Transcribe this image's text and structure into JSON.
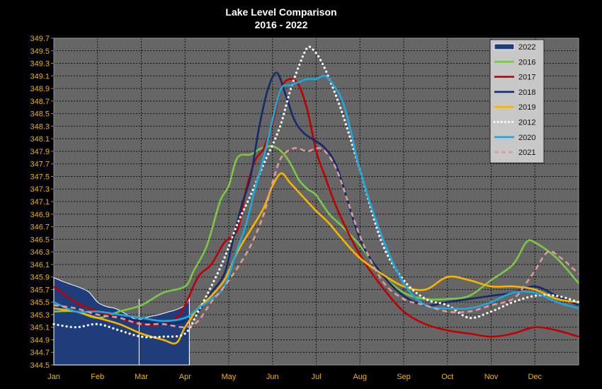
{
  "chart_data": {
    "type": "line",
    "title": "Lake Level Comparison",
    "subtitle": "2016 - 2022",
    "xlabel": "",
    "ylabel": "",
    "x_ticks": [
      "Jan",
      "Feb",
      "Mar",
      "Apr",
      "May",
      "Jun",
      "Jul",
      "Aug",
      "Sep",
      "Oct",
      "Nov",
      "Dec"
    ],
    "y_ticks": [
      "344.5",
      "344.7",
      "344.9",
      "345.1",
      "345.3",
      "345.5",
      "345.7",
      "345.9",
      "346.1",
      "346.3",
      "346.5",
      "346.7",
      "346.9",
      "347.1",
      "347.3",
      "347.5",
      "347.7",
      "347.9",
      "348.1",
      "348.3",
      "348.5",
      "348.7",
      "348.9",
      "349.1",
      "349.3",
      "349.5",
      "349.7"
    ],
    "ylim": [
      344.5,
      349.7
    ],
    "xlim": [
      0,
      12
    ],
    "grid": true,
    "legend_position": "top-right",
    "colors": {
      "background": "#000000",
      "plot_area": "#666666",
      "grid": "#111111",
      "tick_text": "#f0b400",
      "title_text": "#ffffff",
      "legend_bg": "#c8c8c8"
    },
    "series": [
      {
        "name": "2022",
        "style": "area",
        "color": "#1f3d7a",
        "x": [
          0,
          0.2,
          0.4,
          0.6,
          0.8,
          1.0,
          1.2,
          1.4,
          1.6,
          1.8,
          1.95,
          2.0,
          2.2,
          2.4,
          2.6,
          2.8,
          3.0,
          3.1
        ],
        "y": [
          345.89,
          345.83,
          345.78,
          345.73,
          345.66,
          345.5,
          345.43,
          345.4,
          345.33,
          345.25,
          345.2,
          345.23,
          345.27,
          345.3,
          345.34,
          345.38,
          345.45,
          345.55
        ]
      },
      {
        "name": "2016",
        "style": "solid",
        "color": "#7ac943",
        "x": [
          0,
          0.5,
          1.0,
          1.5,
          2.0,
          2.5,
          3.0,
          3.2,
          3.5,
          3.8,
          4.0,
          4.2,
          4.5,
          4.75,
          5.0,
          5.2,
          5.4,
          5.6,
          5.8,
          6.0,
          6.3,
          6.6,
          7.0,
          7.5,
          8.0,
          8.5,
          9.0,
          9.5,
          10.0,
          10.5,
          10.8,
          11.0,
          11.5,
          12.0
        ],
        "y": [
          345.35,
          345.35,
          345.25,
          345.35,
          345.45,
          345.65,
          345.75,
          346.0,
          346.4,
          347.1,
          347.35,
          347.8,
          347.85,
          347.95,
          347.98,
          347.9,
          347.72,
          347.45,
          347.3,
          347.2,
          346.9,
          346.7,
          346.4,
          345.95,
          345.65,
          345.55,
          345.55,
          345.6,
          345.85,
          346.1,
          346.45,
          346.45,
          346.2,
          345.8
        ]
      },
      {
        "name": "2017",
        "style": "solid",
        "color": "#c00000",
        "x": [
          0,
          0.5,
          1.0,
          1.5,
          2.0,
          2.5,
          2.8,
          3.0,
          3.3,
          3.6,
          3.9,
          4.2,
          4.4,
          4.6,
          4.8,
          5.0,
          5.2,
          5.4,
          5.6,
          5.8,
          6.0,
          6.2,
          6.5,
          7.0,
          7.5,
          8.0,
          8.5,
          9.0,
          9.5,
          10.0,
          10.5,
          11.0,
          11.5,
          12.0
        ],
        "y": [
          345.75,
          345.5,
          345.35,
          345.25,
          345.15,
          345.15,
          345.25,
          345.45,
          345.9,
          346.1,
          346.45,
          346.65,
          347.3,
          347.75,
          347.95,
          348.35,
          348.9,
          349.05,
          348.95,
          348.55,
          347.9,
          347.5,
          346.95,
          346.25,
          345.75,
          345.35,
          345.15,
          345.05,
          345.0,
          344.95,
          345.0,
          345.1,
          345.05,
          344.95
        ]
      },
      {
        "name": "2018",
        "style": "solid",
        "color": "#142a6a",
        "x": [
          0,
          0.5,
          1.0,
          1.5,
          2.0,
          2.5,
          3.0,
          3.3,
          3.6,
          3.9,
          4.1,
          4.3,
          4.5,
          4.7,
          4.9,
          5.1,
          5.3,
          5.5,
          5.7,
          5.9,
          6.2,
          6.5,
          7.0,
          7.5,
          8.0,
          8.5,
          9.0,
          9.5,
          10.0,
          10.5,
          11.0,
          11.5,
          12.0
        ],
        "y": [
          345.45,
          345.35,
          345.3,
          345.25,
          345.2,
          345.15,
          345.2,
          345.35,
          345.65,
          345.95,
          346.5,
          347.05,
          347.5,
          348.3,
          348.9,
          349.15,
          348.8,
          348.4,
          348.2,
          348.1,
          347.95,
          347.6,
          346.5,
          345.95,
          345.6,
          345.45,
          345.5,
          345.55,
          345.6,
          345.65,
          345.75,
          345.6,
          345.45
        ]
      },
      {
        "name": "2019",
        "style": "solid",
        "color": "#f7b500",
        "x": [
          0,
          0.5,
          1.0,
          1.5,
          2.0,
          2.5,
          2.8,
          3.0,
          3.3,
          3.6,
          3.9,
          4.2,
          4.5,
          4.8,
          5.0,
          5.2,
          5.4,
          5.6,
          5.8,
          6.0,
          6.3,
          6.6,
          7.0,
          7.5,
          8.0,
          8.5,
          9.0,
          9.5,
          10.0,
          10.5,
          11.0,
          11.5,
          12.0
        ],
        "y": [
          345.4,
          345.35,
          345.25,
          345.15,
          345.0,
          344.9,
          344.85,
          345.1,
          345.4,
          345.6,
          345.85,
          346.3,
          346.65,
          347.0,
          347.35,
          347.55,
          347.4,
          347.25,
          347.1,
          346.95,
          346.75,
          346.5,
          346.2,
          345.95,
          345.75,
          345.7,
          345.9,
          345.85,
          345.75,
          345.75,
          345.7,
          345.55,
          345.5
        ]
      },
      {
        "name": "2012",
        "style": "dotted",
        "color": "#ffffff",
        "x": [
          0,
          0.5,
          1.0,
          1.5,
          2.0,
          2.5,
          3.0,
          3.3,
          3.6,
          3.9,
          4.2,
          4.5,
          4.8,
          5.0,
          5.2,
          5.4,
          5.6,
          5.8,
          5.95,
          6.1,
          6.3,
          6.6,
          7.0,
          7.5,
          8.0,
          8.5,
          9.0,
          9.5,
          10.0,
          10.5,
          11.0,
          11.5,
          12.0
        ],
        "y": [
          345.15,
          345.1,
          345.15,
          345.05,
          344.95,
          344.95,
          345.0,
          345.35,
          345.75,
          346.2,
          346.75,
          347.2,
          347.7,
          348.0,
          348.35,
          348.85,
          349.25,
          349.55,
          349.5,
          349.35,
          349.05,
          348.5,
          347.6,
          346.45,
          345.85,
          345.55,
          345.45,
          345.25,
          345.35,
          345.5,
          345.6,
          345.6,
          345.5
        ]
      },
      {
        "name": "2020",
        "style": "solid",
        "color": "#1fa8e0",
        "x": [
          0,
          0.5,
          1.0,
          1.5,
          2.0,
          2.5,
          3.0,
          3.3,
          3.6,
          3.9,
          4.2,
          4.4,
          4.6,
          4.8,
          5.0,
          5.2,
          5.4,
          5.6,
          5.8,
          6.0,
          6.2,
          6.4,
          6.6,
          6.8,
          7.0,
          7.5,
          8.0,
          8.5,
          9.0,
          9.5,
          10.0,
          10.5,
          11.0,
          11.5,
          12.0
        ],
        "y": [
          345.5,
          345.35,
          345.35,
          345.3,
          345.25,
          345.2,
          345.25,
          345.4,
          345.55,
          345.75,
          346.35,
          346.75,
          347.3,
          347.8,
          348.4,
          348.9,
          348.95,
          349.0,
          349.05,
          349.05,
          349.1,
          348.95,
          348.7,
          348.2,
          347.6,
          346.55,
          345.8,
          345.45,
          345.4,
          345.4,
          345.5,
          345.65,
          345.65,
          345.5,
          345.4
        ]
      },
      {
        "name": "2021",
        "style": "dashed",
        "color": "#e2999a",
        "x": [
          0,
          0.5,
          1.0,
          1.5,
          2.0,
          2.5,
          3.0,
          3.3,
          3.6,
          3.9,
          4.2,
          4.5,
          4.8,
          5.0,
          5.2,
          5.5,
          5.8,
          6.0,
          6.2,
          6.5,
          7.0,
          7.5,
          8.0,
          8.5,
          9.0,
          9.5,
          10.0,
          10.5,
          10.8,
          11.0,
          11.3,
          11.6,
          12.0
        ],
        "y": [
          345.45,
          345.4,
          345.3,
          345.25,
          345.15,
          345.15,
          345.1,
          345.2,
          345.5,
          345.75,
          346.05,
          346.4,
          346.9,
          347.4,
          347.8,
          347.95,
          347.9,
          347.95,
          347.9,
          347.55,
          346.55,
          345.85,
          345.55,
          345.45,
          345.35,
          345.35,
          345.45,
          345.55,
          345.8,
          346.0,
          346.3,
          346.2,
          345.95
        ]
      }
    ]
  }
}
